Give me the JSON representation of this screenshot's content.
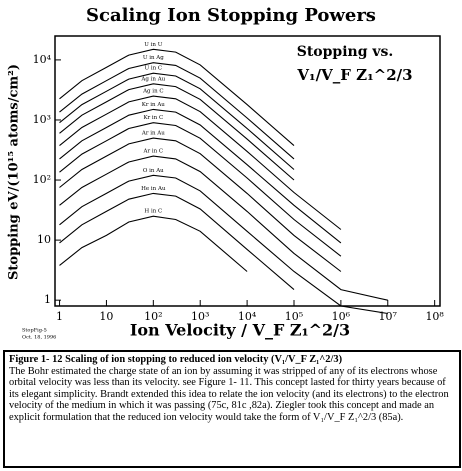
{
  "chart_data": {
    "type": "line",
    "title": "Scaling Ion Stopping Powers",
    "annotation": [
      "Stopping vs.",
      "V₁/V_F Z₁^2/3"
    ],
    "footnote": [
      "StopFig-5",
      "Oct. 18, 1996"
    ],
    "x_label": "Ion Velocity / V_F Z₁^2/3",
    "y_label": "Stopping eV/(10¹⁵ atoms/cm²)",
    "log_x": true,
    "log_y": true,
    "color": "#000000",
    "xlim": [
      0.8,
      130000000
    ],
    "ylim": [
      0.8,
      25000
    ],
    "xticks": [
      1,
      10,
      {
        "value": 100,
        "label": "10²"
      },
      {
        "value": 1000,
        "label": "10³"
      },
      {
        "value": 10000,
        "label": "10⁴"
      },
      {
        "value": 100000,
        "label": "10⁵"
      },
      {
        "value": 1000000,
        "label": "10⁶"
      },
      {
        "value": 10000000,
        "label": "10⁷"
      },
      {
        "value": 100000000,
        "label": "10⁸"
      }
    ],
    "yticks": [
      1,
      10,
      {
        "value": 100,
        "label": "10²"
      },
      {
        "value": 1000,
        "label": "10³"
      },
      {
        "value": 10000,
        "label": "10⁴"
      }
    ],
    "x": [
      1,
      3,
      10,
      30,
      100,
      300,
      1000,
      10000,
      100000,
      1000000,
      10000000
    ],
    "series": [
      {
        "name": "U in U",
        "values": [
          2250,
          4500,
          7500,
          12000,
          15000,
          13500,
          8250,
          1800,
          375,
          null,
          null
        ]
      },
      {
        "name": "U in Ag",
        "values": [
          1350,
          2700,
          4500,
          7200,
          9000,
          8100,
          4950,
          1080,
          225,
          null,
          null
        ]
      },
      {
        "name": "U in C",
        "values": [
          900,
          1800,
          3000,
          4800,
          6000,
          5400,
          3300,
          720,
          150,
          null,
          null
        ]
      },
      {
        "name": "Ag in Au",
        "values": [
          600,
          1200,
          2000,
          3200,
          4000,
          3600,
          2200,
          480,
          100,
          null,
          null
        ]
      },
      {
        "name": "Ag in C",
        "values": [
          375,
          750,
          1250,
          2000,
          2500,
          2250,
          1375,
          300,
          62,
          15,
          null
        ]
      },
      {
        "name": "Kr in Au",
        "values": [
          225,
          450,
          750,
          1200,
          1500,
          1350,
          825,
          180,
          38,
          9,
          null
        ]
      },
      {
        "name": "Kr in C",
        "values": [
          135,
          270,
          450,
          720,
          900,
          810,
          495,
          108,
          22,
          5.4,
          null
        ]
      },
      {
        "name": "Ar in Au",
        "values": [
          75,
          150,
          250,
          400,
          500,
          450,
          275,
          60,
          12,
          3,
          null
        ]
      },
      {
        "name": "Ar in C",
        "values": [
          38,
          75,
          125,
          200,
          250,
          225,
          138,
          30,
          6,
          1.5,
          1
        ]
      },
      {
        "name": "O in Au",
        "values": [
          18,
          36,
          60,
          96,
          120,
          108,
          66,
          14,
          3,
          0.8,
          0.6
        ]
      },
      {
        "name": "He in Au",
        "values": [
          9,
          18,
          30,
          48,
          60,
          54,
          33,
          7,
          1.5,
          null,
          null
        ]
      },
      {
        "name": "H in C",
        "values": [
          3.8,
          7.5,
          12,
          20,
          25,
          22,
          14,
          3,
          null,
          null,
          null
        ]
      }
    ]
  },
  "caption": {
    "title": "Figure 1- 12 Scaling of ion stopping to reduced ion velocity (V₁/V_F Z₁^2/3)",
    "body": "The Bohr estimated the charge state of an ion by assuming it was stripped of any of its electrons whose orbital velocity was less than its velocity. see Figure 1- 11. This concept lasted for thirty years because of its elegant simplicity. Brandt extended this idea to relate the ion velocity (and its electrons) to the electron velocity of the medium in which it was passing (75c, 81c ,82a). Ziegler took this concept and made an explicit formulation that the reduced ion velocity would take the form of V₁/V_F Z₁^2/3 (85a)."
  }
}
